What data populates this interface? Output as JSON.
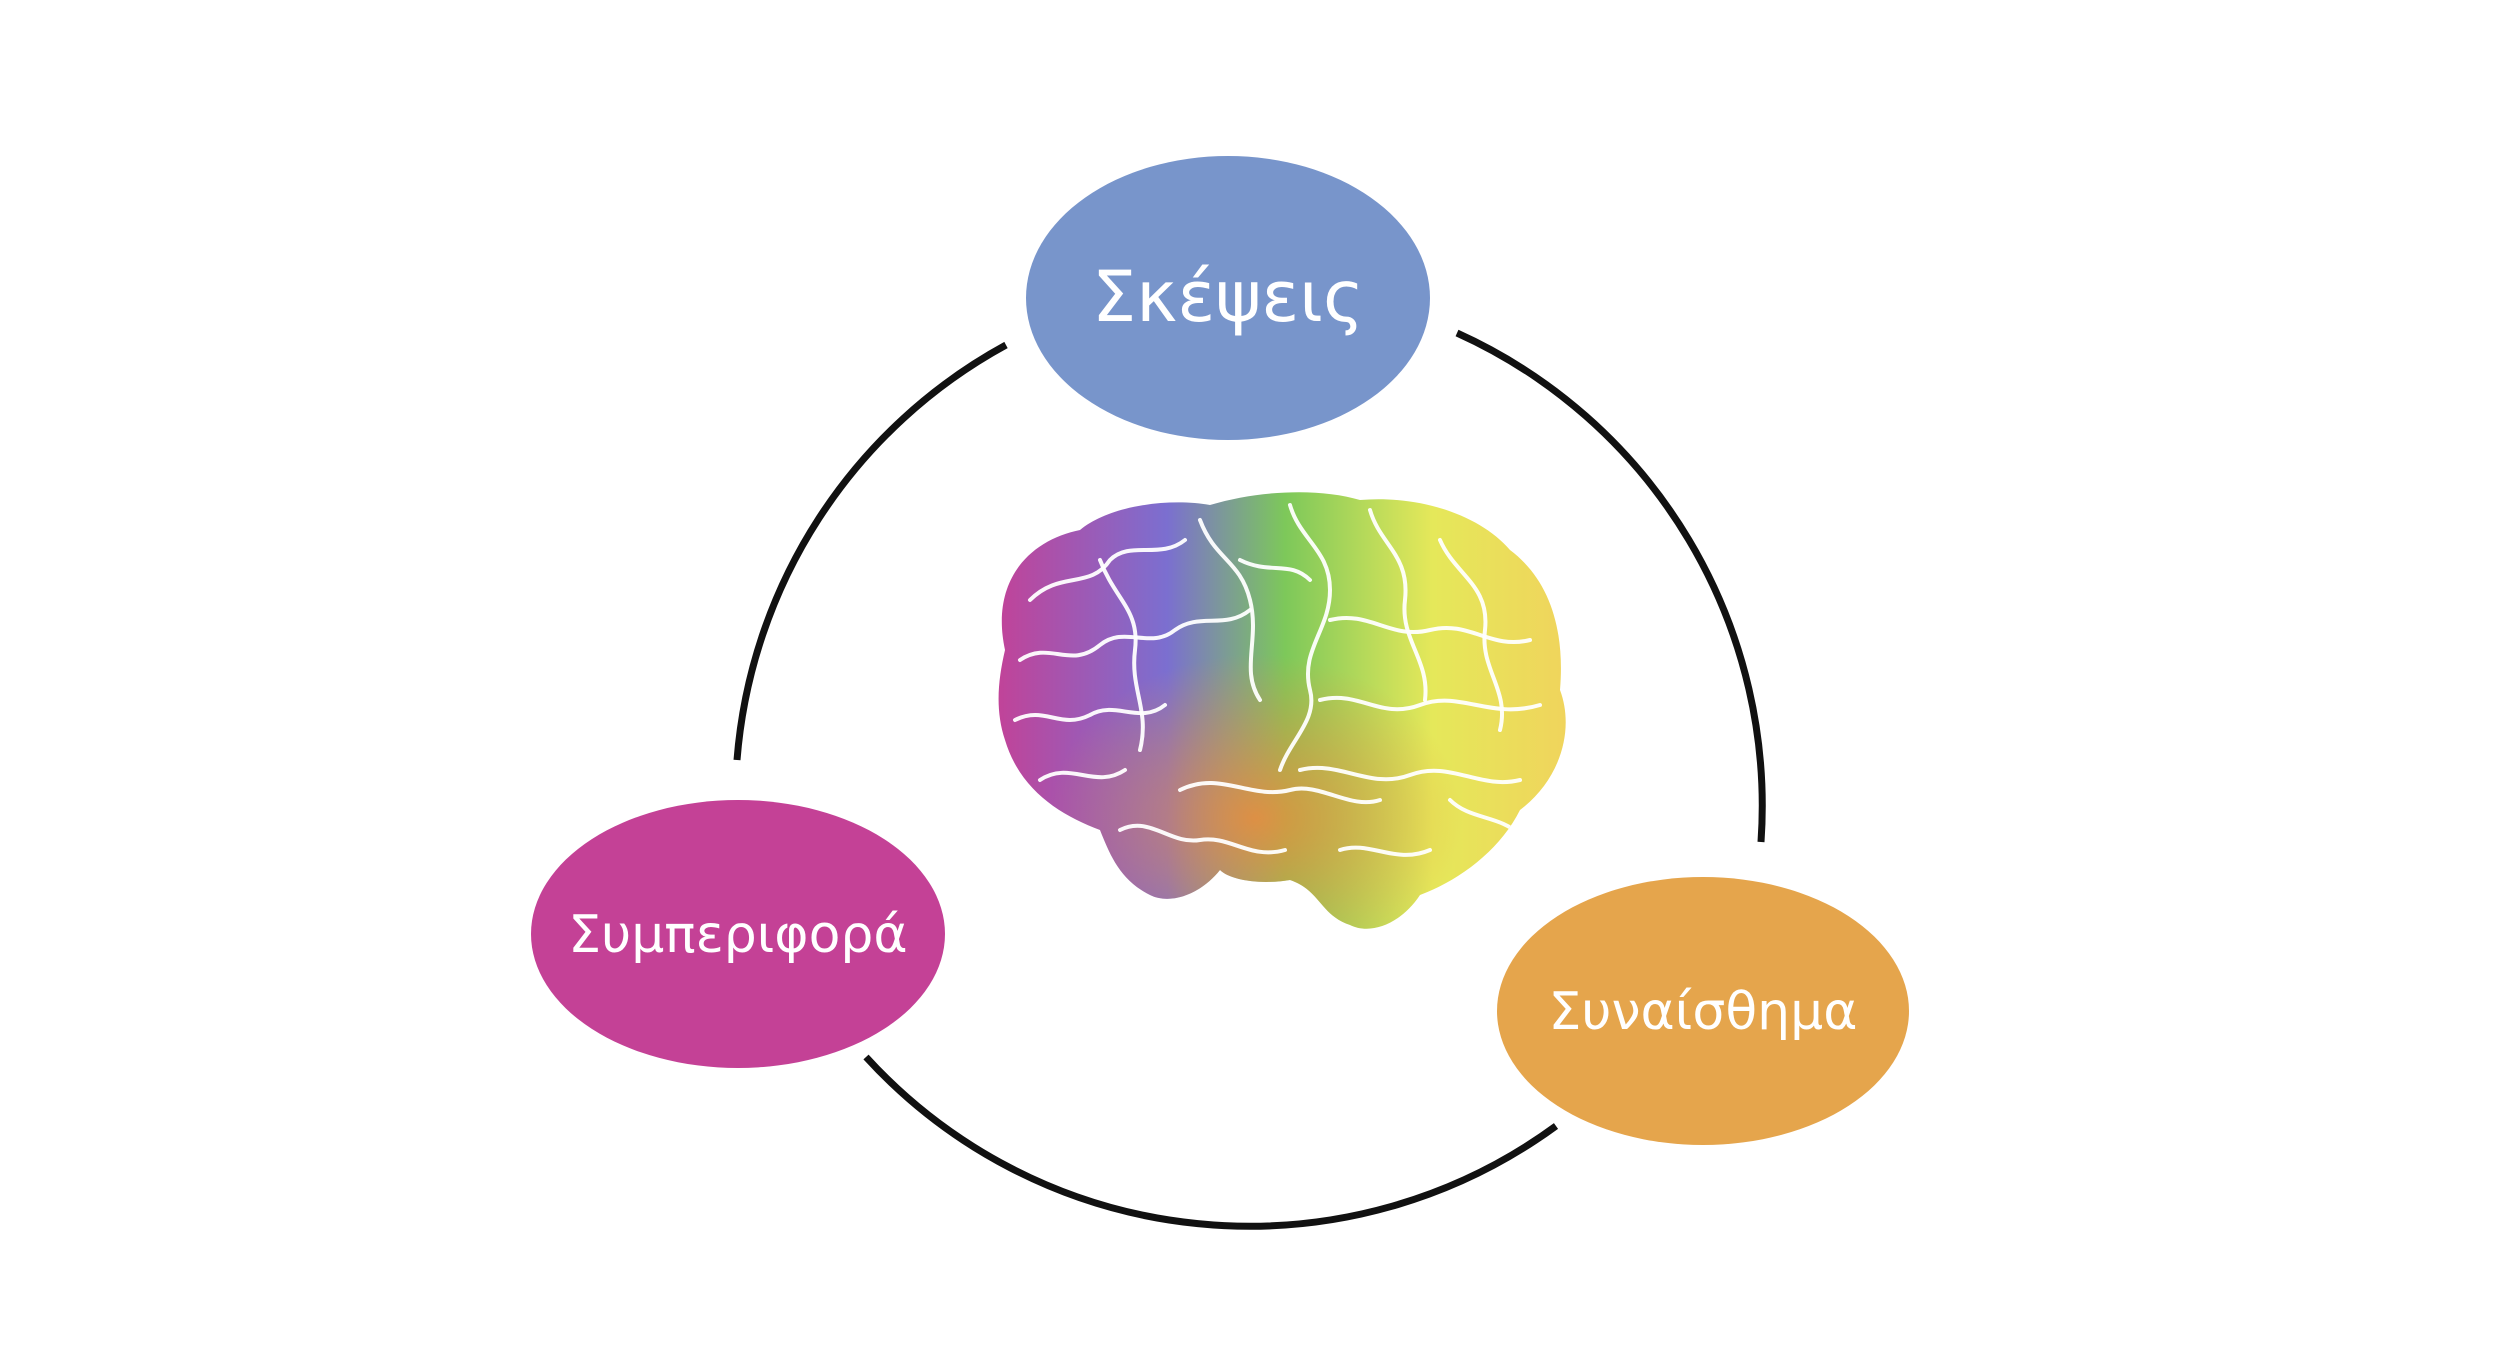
{
  "nodes": {
    "thoughts": {
      "label": "Σκέψεις",
      "color": "#7895cb"
    },
    "behavior": {
      "label": "Συμπεριφορά",
      "color": "#c44196"
    },
    "emotion": {
      "label": "Συναίσθημα",
      "color": "#e5a54c"
    }
  },
  "cycle": {
    "stroke_color": "#111111"
  },
  "brain_image": {
    "icon": "brain-icon",
    "palette": [
      "#c44196",
      "#e6539b",
      "#8b62c7",
      "#5b8fd9",
      "#5fb4c8",
      "#7dc85a",
      "#c6dd4a",
      "#ecea62",
      "#f4c64d",
      "#ee8a3c"
    ]
  }
}
